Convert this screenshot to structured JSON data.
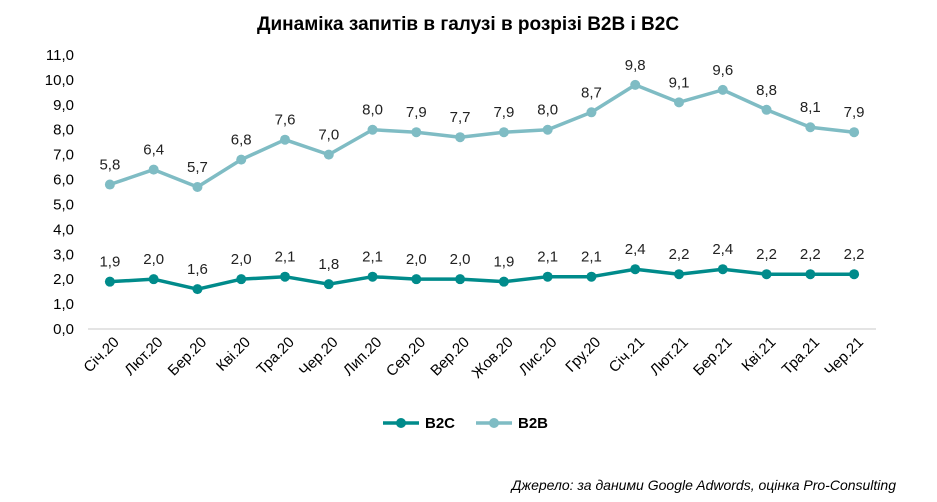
{
  "chart_data": {
    "type": "line",
    "title": "Динаміка запитів в галузі в розрізі B2B і B2C",
    "categories": [
      "Січ.20",
      "Лют.20",
      "Бер.20",
      "Кві.20",
      "Тра.20",
      "Чер.20",
      "Лип.20",
      "Сер.20",
      "Вер.20",
      "Жов.20",
      "Лис.20",
      "Гру.20",
      "Січ.21",
      "Лют.21",
      "Бер.21",
      "Кві.21",
      "Тра.21",
      "Чер.21"
    ],
    "series": [
      {
        "name": "B2C",
        "color": "#008B8B",
        "values": [
          1.9,
          2.0,
          1.6,
          2.0,
          2.1,
          1.8,
          2.1,
          2.0,
          2.0,
          1.9,
          2.1,
          2.1,
          2.4,
          2.2,
          2.4,
          2.2,
          2.2,
          2.2
        ],
        "labels": [
          "1,9",
          "2,0",
          "1,6",
          "2,0",
          "2,1",
          "1,8",
          "2,1",
          "2,0",
          "2,0",
          "1,9",
          "2,1",
          "2,1",
          "2,4",
          "2,2",
          "2,4",
          "2,2",
          "2,2",
          "2,2"
        ]
      },
      {
        "name": "B2B",
        "color": "#7FBCC4",
        "values": [
          5.8,
          6.4,
          5.7,
          6.8,
          7.6,
          7.0,
          8.0,
          7.9,
          7.7,
          7.9,
          8.0,
          8.7,
          9.8,
          9.1,
          9.6,
          8.8,
          8.1,
          7.9
        ],
        "labels": [
          "5,8",
          "6,4",
          "5,7",
          "6,8",
          "7,6",
          "7,0",
          "8,0",
          "7,9",
          "7,7",
          "7,9",
          "8,0",
          "8,7",
          "9,8",
          "9,1",
          "9,6",
          "8,8",
          "8,1",
          "7,9"
        ]
      }
    ],
    "ylim": [
      0,
      11
    ],
    "y_ticks": [
      "0,0",
      "1,0",
      "2,0",
      "3,0",
      "4,0",
      "5,0",
      "6,0",
      "7,0",
      "8,0",
      "9,0",
      "10,0",
      "11,0"
    ],
    "grid": false,
    "legend": "bottom-center",
    "source": "Джерело: за даними Google Adwords, оцінка Pro-Consulting"
  }
}
